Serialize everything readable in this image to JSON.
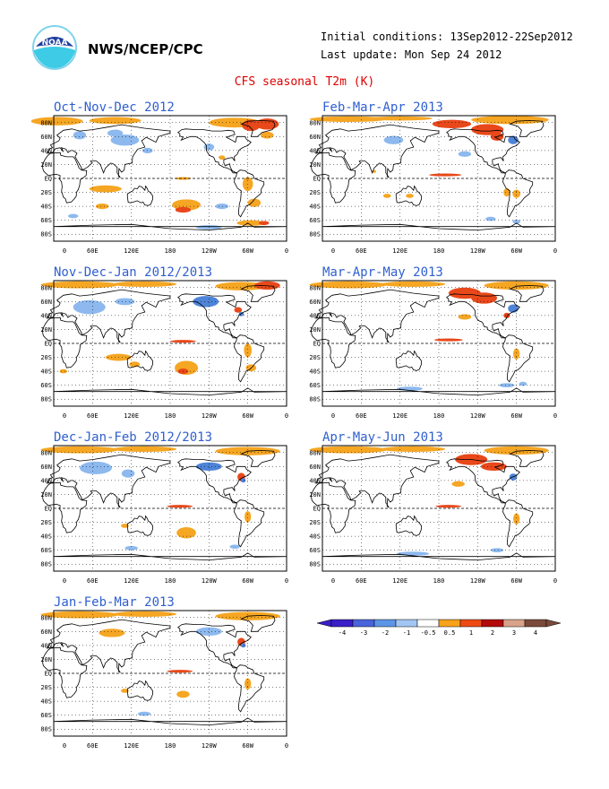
{
  "header": {
    "org": "NWS/NCEP/CPC",
    "initial_conditions": "Initial conditions: 13Sep2012-22Sep2012",
    "last_update": "Last update: Mon Sep 24 2012",
    "title": "CFS seasonal T2m (K)"
  },
  "logo": {
    "name": "noaa-logo",
    "text": "NOAA"
  },
  "lat_labels": [
    "80N",
    "60N",
    "40N",
    "20N",
    "EQ",
    "20S",
    "40S",
    "60S",
    "80S"
  ],
  "lon_labels": [
    "0",
    "60E",
    "120E",
    "180",
    "120W",
    "60W",
    "0"
  ],
  "panels": [
    {
      "title": "Oct-Nov-Dec 2012"
    },
    {
      "title": "Feb-Mar-Apr 2013"
    },
    {
      "title": "Nov-Dec-Jan 2012/2013"
    },
    {
      "title": "Mar-Apr-May 2013"
    },
    {
      "title": "Dec-Jan-Feb 2012/2013"
    },
    {
      "title": "Apr-May-Jun 2013"
    },
    {
      "title": "Jan-Feb-Mar 2013"
    }
  ],
  "colorbar": {
    "labels": [
      "-4",
      "-3",
      "-2",
      "-1",
      "-0.5",
      "0.5",
      "1",
      "2",
      "3",
      "4"
    ],
    "colors": [
      "#3a1ec8",
      "#4a64dc",
      "#5d96e6",
      "#a2c6f2",
      "#ffffff",
      "#f7a21a",
      "#ee4b14",
      "#b40a0a",
      "#d9a28a",
      "#7a4a3a"
    ]
  },
  "colors": {
    "warm": "#f5a623",
    "warm_strong": "#e8481a",
    "hot": "#b8120f",
    "cool": "#8db9ee",
    "cool_strong": "#4e84d8",
    "land": "#000000"
  }
}
